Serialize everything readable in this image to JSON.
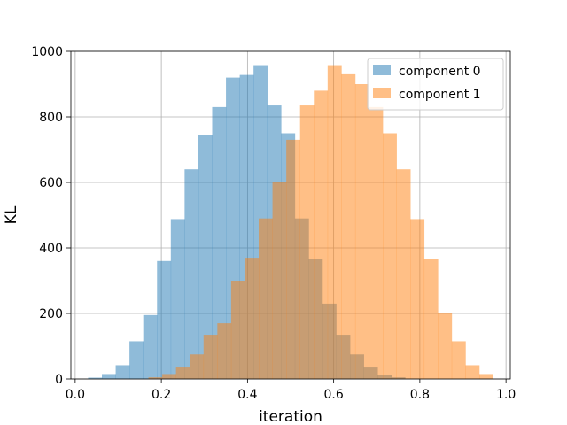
{
  "chart_data": {
    "type": "bar",
    "subtype": "overlapping-histogram",
    "title": "",
    "xlabel": "iteration",
    "ylabel": "KL",
    "xlim": [
      -0.01,
      1.01
    ],
    "ylim": [
      0,
      1000
    ],
    "xticks": [
      "0.0",
      "0.2",
      "0.4",
      "0.6",
      "0.8",
      "1.0"
    ],
    "xtick_values": [
      0.0,
      0.2,
      0.4,
      0.6,
      0.8,
      1.0
    ],
    "yticks": [
      "0",
      "200",
      "400",
      "600",
      "800",
      "1000"
    ],
    "ytick_values": [
      0,
      200,
      400,
      600,
      800,
      1000
    ],
    "grid": true,
    "legend_position": "top-right",
    "bar_alpha": 0.5,
    "series": [
      {
        "name": "component 0",
        "color": "#1f77b4",
        "bin_edges": [
          0.03,
          0.062,
          0.094,
          0.126,
          0.158,
          0.19,
          0.222,
          0.254,
          0.286,
          0.318,
          0.35,
          0.382,
          0.414,
          0.446,
          0.478,
          0.51,
          0.542,
          0.574,
          0.606,
          0.638,
          0.67,
          0.702,
          0.734,
          0.766,
          0.798
        ],
        "values": [
          4,
          15,
          42,
          115,
          195,
          360,
          488,
          640,
          745,
          830,
          920,
          928,
          958,
          835,
          750,
          490,
          365,
          230,
          135,
          75,
          35,
          13,
          5,
          1
        ]
      },
      {
        "name": "component 1",
        "color": "#ff7f0e",
        "bin_edges": [
          0.17,
          0.202,
          0.234,
          0.266,
          0.298,
          0.33,
          0.362,
          0.394,
          0.426,
          0.458,
          0.49,
          0.522,
          0.554,
          0.586,
          0.618,
          0.65,
          0.682,
          0.714,
          0.746,
          0.778,
          0.81,
          0.842,
          0.874,
          0.906,
          0.938,
          0.97
        ],
        "values": [
          5,
          15,
          35,
          75,
          135,
          170,
          300,
          370,
          490,
          600,
          730,
          835,
          880,
          958,
          930,
          900,
          830,
          750,
          640,
          488,
          365,
          200,
          115,
          42,
          15
        ]
      }
    ]
  }
}
